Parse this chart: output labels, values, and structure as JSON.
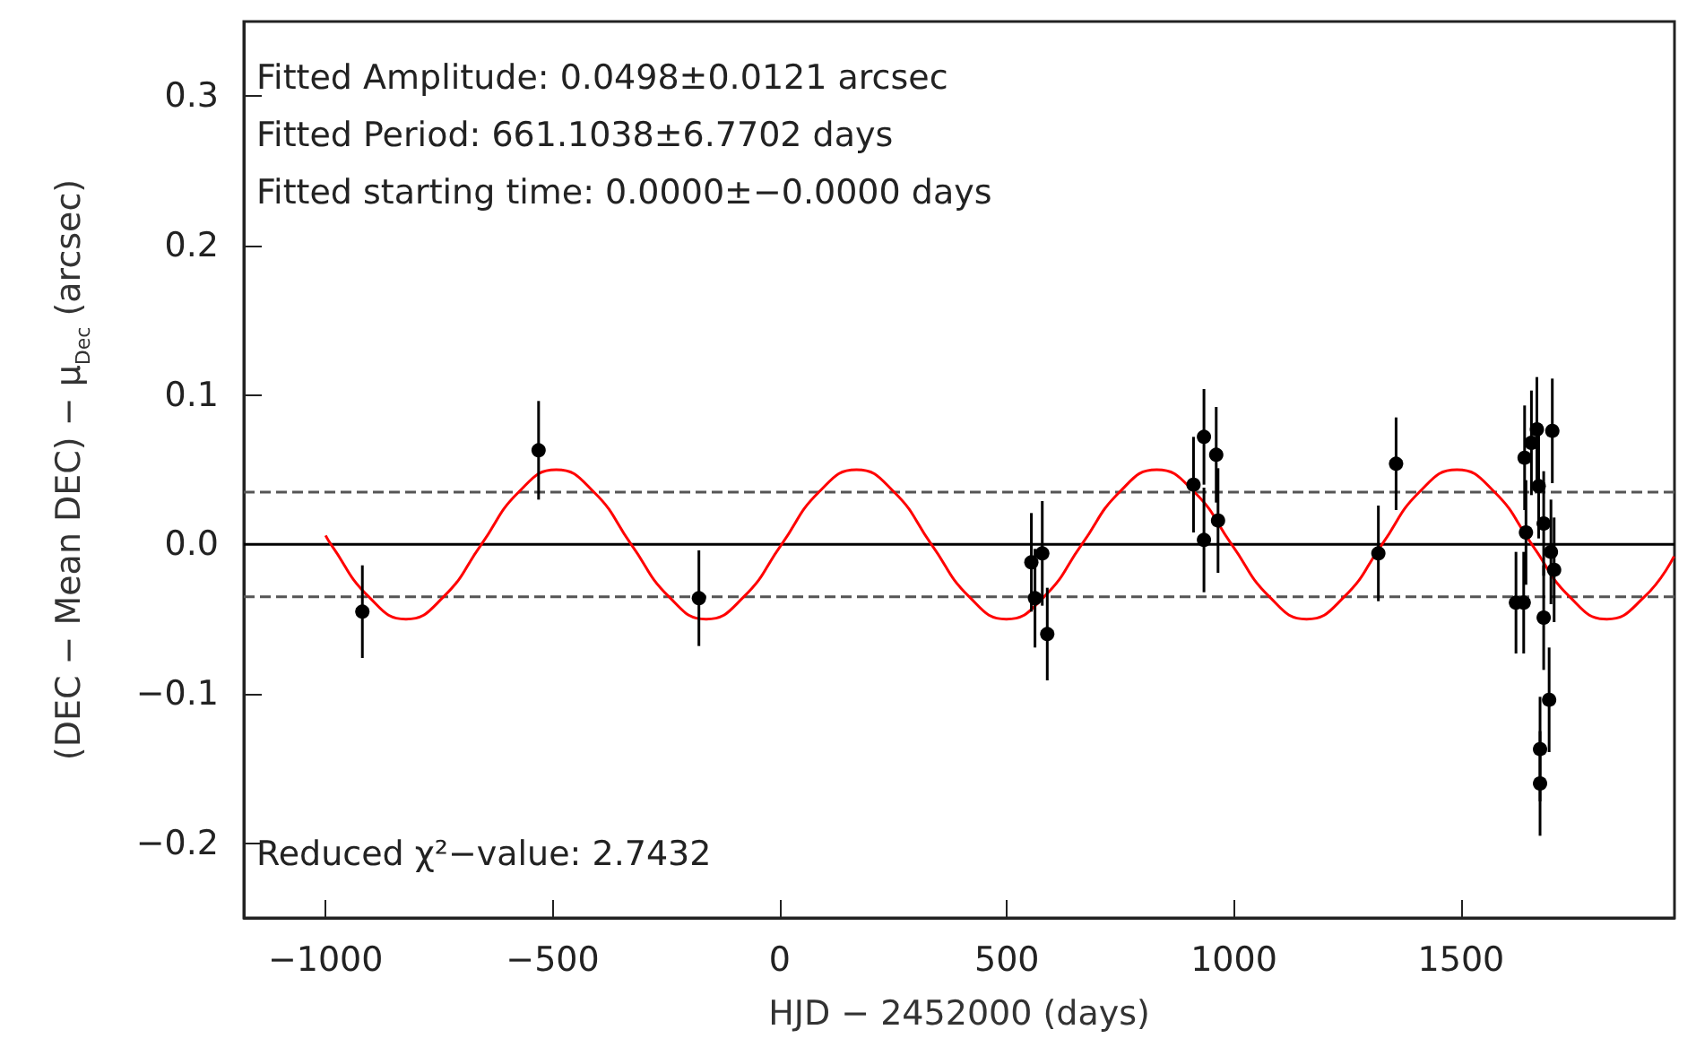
{
  "chart_data": {
    "type": "scatter",
    "xlabel": "HJD − 2452000 (days)",
    "ylabel": "(DEC − Mean DEC) − μ$_{Dec}$ (arcsec)",
    "xlim": [
      -1180,
      1970
    ],
    "xticks": [
      {
        "value": -1000,
        "label": "−1000"
      },
      {
        "value": -500,
        "label": "−500"
      },
      0,
      500,
      1000,
      1500
    ],
    "ylim": [
      -0.25,
      0.35
    ],
    "yticks": [
      {
        "value": -0.2,
        "label": "−0.2"
      },
      {
        "value": -0.1,
        "label": "−0.1"
      },
      {
        "value": 0,
        "label": "0.0"
      },
      0.1,
      0.2,
      0.3
    ],
    "marker": "circle",
    "annotations": [
      "Fitted Amplitude: 0.0498±0.0121 arcsec",
      "Fitted Period: 661.1038±6.7702 days",
      "Fitted starting time: 0.0000±−0.0000 days",
      "Reduced χ²−value: 2.7432"
    ],
    "ref_lines": [
      {
        "axis": "y",
        "value": 0,
        "color": "#000000",
        "line_style": "solid"
      },
      {
        "axis": "y",
        "value": 0.035,
        "color": "#555555",
        "line_style": "dashed"
      },
      {
        "axis": "y",
        "value": -0.035,
        "color": "#555555",
        "line_style": "dashed"
      }
    ],
    "series": [
      {
        "type": "line",
        "color": "#ff0000",
        "marker": "none",
        "x": [
          -1000,
          -988,
          -905,
          -823,
          -740,
          -657,
          -575,
          -492,
          -409,
          -327,
          -244,
          -162,
          -79,
          4,
          86,
          169,
          252,
          334,
          417,
          499,
          582,
          665,
          748,
          830,
          913,
          995,
          1078,
          1160,
          1243,
          1326,
          1408,
          1491,
          1574,
          1656,
          1739,
          1821,
          1904,
          1969
        ],
        "values": [
          0.006,
          0,
          -0.035,
          -0.05,
          -0.035,
          0,
          0.035,
          0.05,
          0.035,
          0,
          -0.035,
          -0.05,
          -0.035,
          0,
          0.035,
          0.05,
          0.035,
          0,
          -0.035,
          -0.05,
          -0.035,
          0,
          0.035,
          0.05,
          0.035,
          0,
          -0.035,
          -0.05,
          -0.035,
          0,
          0.035,
          0.05,
          0.035,
          0,
          -0.035,
          -0.05,
          -0.035,
          -0.008
        ]
      },
      {
        "type": "scatter",
        "color": "#000000",
        "x": [
          -919,
          -531,
          -178,
          554,
          562,
          578,
          589,
          911,
          934,
          934,
          961,
          965,
          1318,
          1357,
          1621,
          1638,
          1640,
          1643,
          1655,
          1667,
          1671,
          1674,
          1674,
          1682,
          1682,
          1694,
          1698,
          1701,
          1705
        ],
        "values": [
          -0.045,
          0.063,
          -0.036,
          -0.012,
          -0.036,
          -0.006,
          -0.06,
          0.04,
          0.072,
          0.003,
          0.06,
          0.016,
          -0.006,
          0.054,
          -0.039,
          -0.039,
          0.058,
          0.008,
          0.068,
          0.077,
          0.039,
          -0.137,
          -0.16,
          -0.049,
          0.014,
          -0.104,
          -0.005,
          0.076,
          -0.017
        ],
        "errors": [
          0.031,
          0.033,
          0.032,
          0.033,
          0.033,
          0.035,
          0.031,
          0.032,
          0.032,
          0.035,
          0.032,
          0.035,
          0.032,
          0.031,
          0.034,
          0.034,
          0.035,
          0.035,
          0.035,
          0.035,
          0.035,
          0.035,
          0.035,
          0.035,
          0.035,
          0.035,
          0.035,
          0.035,
          0.035
        ]
      }
    ]
  }
}
